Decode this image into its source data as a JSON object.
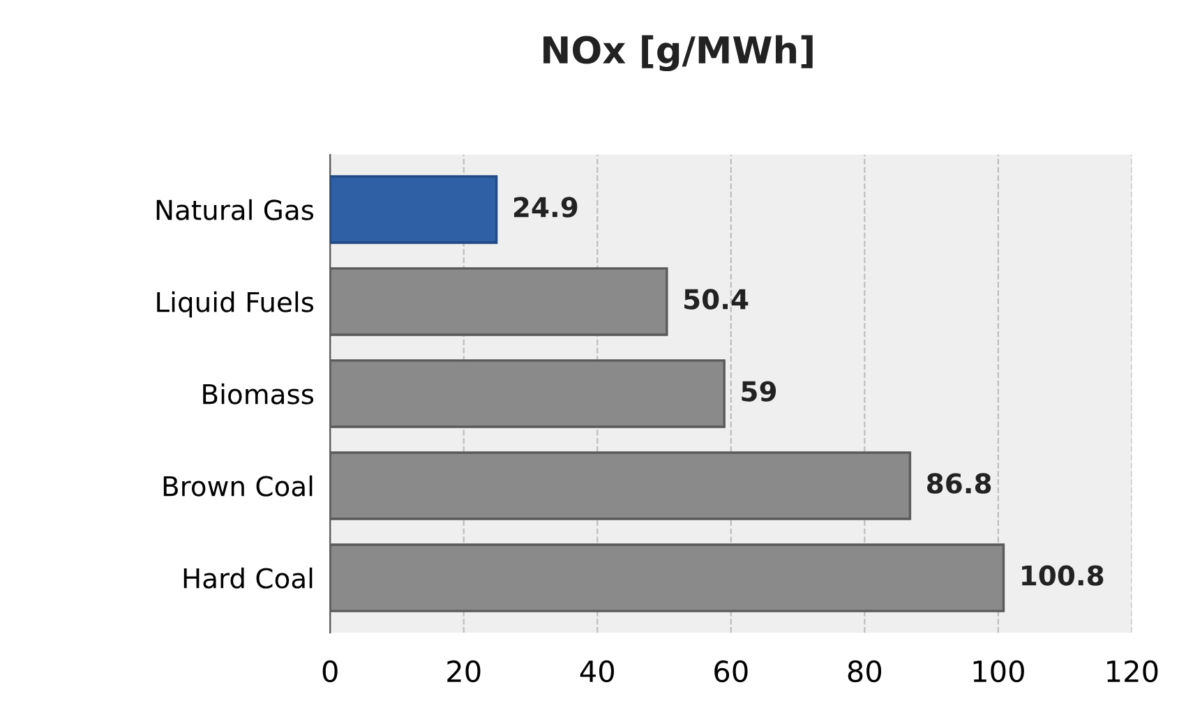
{
  "chart_data": {
    "type": "bar",
    "orientation": "horizontal",
    "title": "NOx [g/MWh]",
    "categories": [
      "Natural Gas",
      "Liquid Fuels",
      "Biomass",
      "Brown Coal",
      "Hard Coal"
    ],
    "values": [
      24.9,
      50.4,
      59,
      86.8,
      100.8
    ],
    "colors": [
      "#2f5fa5",
      "#8a8a8a",
      "#8a8a8a",
      "#8a8a8a",
      "#8a8a8a"
    ],
    "xlim": [
      0,
      120
    ],
    "xticks": [
      0,
      20,
      40,
      60,
      80,
      100,
      120
    ],
    "grid": "x",
    "data_labels": true,
    "legend": false
  }
}
